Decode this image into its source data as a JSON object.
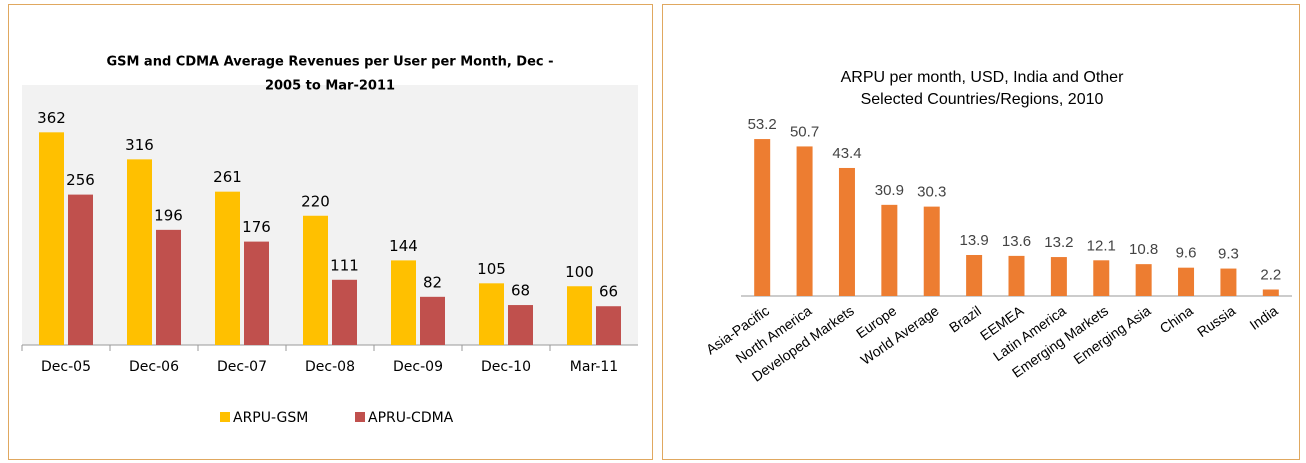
{
  "chart_data": [
    {
      "type": "bar",
      "title": [
        "GSM and CDMA Average Revenues per User per Month, Dec   -",
        "2005 to Mar-2011"
      ],
      "categories": [
        "Dec-05",
        "Dec-06",
        "Dec-07",
        "Dec-08",
        "Dec-09",
        "Dec-10",
        "Mar-11"
      ],
      "series": [
        {
          "name": "ARPU-GSM",
          "color": "#ffc000",
          "values": [
            362,
            316,
            261,
            220,
            144,
            105,
            100
          ]
        },
        {
          "name": "APRU-CDMA",
          "color": "#c0504d",
          "values": [
            256,
            196,
            176,
            111,
            82,
            68,
            66
          ]
        }
      ],
      "ylim": [
        0,
        400
      ],
      "legend": "bottom"
    },
    {
      "type": "bar",
      "title": [
        "ARPU per month, USD, India and Other",
        "Selected Countries/Regions, 2010"
      ],
      "categories": [
        "Asia-Pacific",
        "North America",
        "Developed Markets",
        "Europe",
        "World Average",
        "Brazil",
        "EEMEA",
        "Latin America",
        "Emerging Markets",
        "Emerging Asia",
        "China",
        "Russia",
        "India"
      ],
      "series": [
        {
          "name": null,
          "color": "#ed7d31",
          "values": [
            53.2,
            50.7,
            43.4,
            30.9,
            30.3,
            13.9,
            13.6,
            13.2,
            12.1,
            10.8,
            9.6,
            9.3,
            2.2
          ]
        }
      ],
      "ylim": [
        0,
        60
      ]
    }
  ]
}
